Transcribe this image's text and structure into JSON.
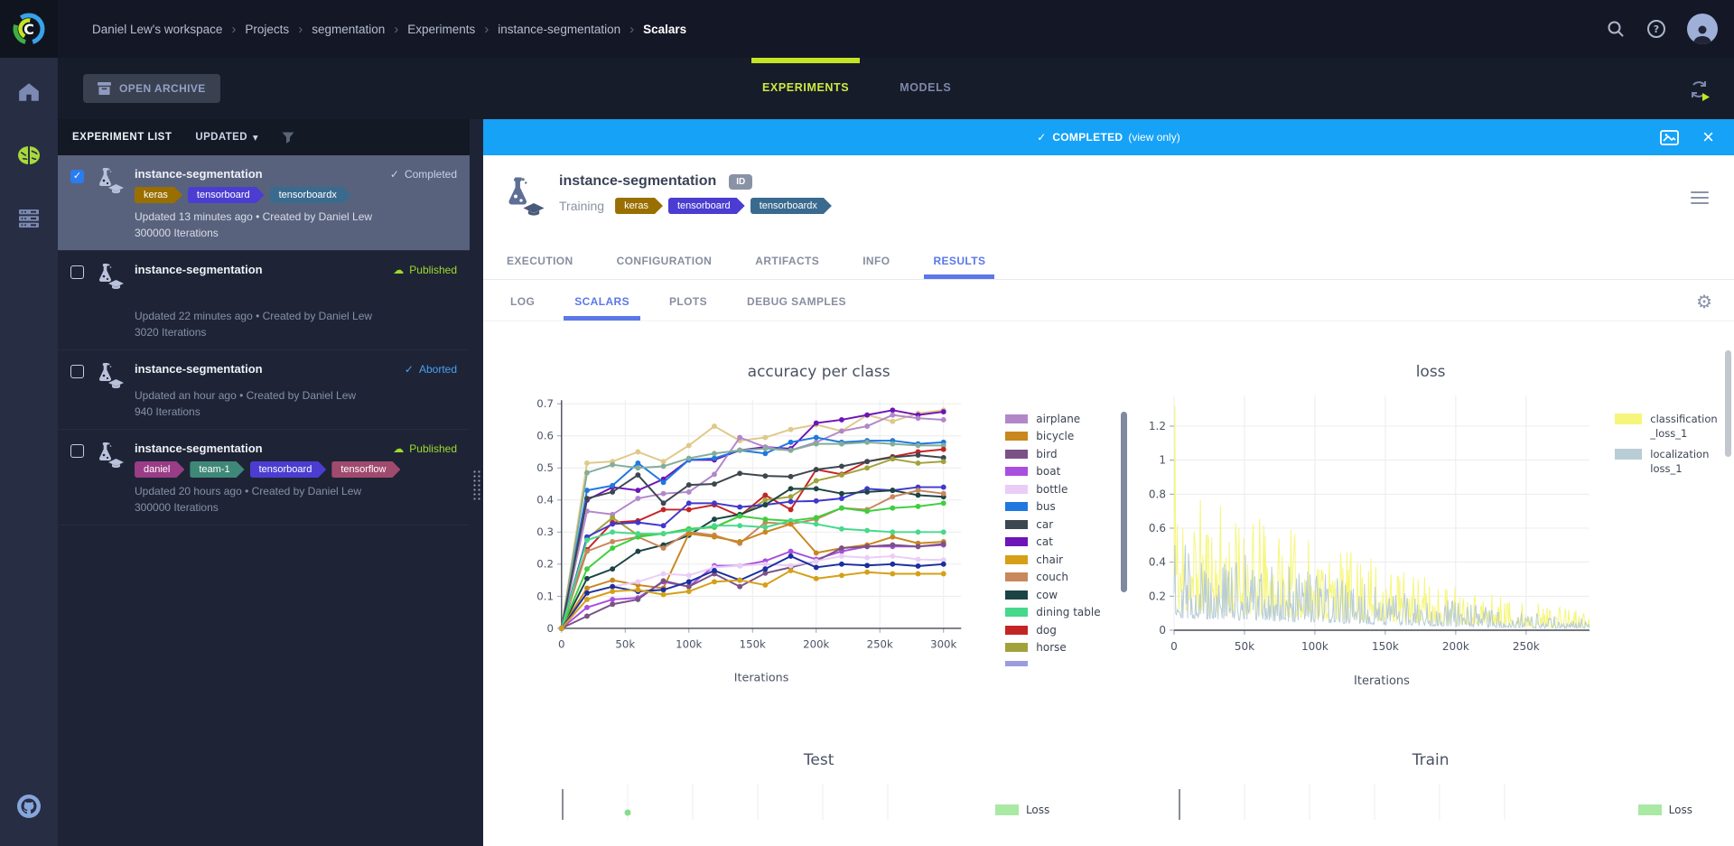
{
  "topbar": {
    "breadcrumbs": [
      {
        "label": "Daniel Lew's workspace",
        "sep": ""
      },
      {
        "label": "Projects",
        "sep": "›"
      },
      {
        "label": "segmentation",
        "sep": "›"
      },
      {
        "label": "Experiments",
        "sep": "›"
      },
      {
        "label": "instance-segmentation",
        "sep": "›"
      },
      {
        "label": "Scalars",
        "sep": "›",
        "current": true
      }
    ]
  },
  "header": {
    "open_archive": "OPEN ARCHIVE",
    "tabs": [
      {
        "label": "EXPERIMENTS",
        "active": true
      },
      {
        "label": "MODELS"
      }
    ]
  },
  "experiment_list": {
    "title": "EXPERIMENT LIST",
    "sort_label": "UPDATED",
    "sort_caret": "▾",
    "items": [
      {
        "name": "instance-segmentation",
        "status": "Completed",
        "status_glyph": "✓",
        "status_color": "#c8d0e8",
        "checked": true,
        "selected": true,
        "tags": [
          {
            "label": "keras",
            "color": "#996f00"
          },
          {
            "label": "tensorboard",
            "color": "#4b3dd1"
          },
          {
            "label": "tensorboardx",
            "color": "#3a6b8f"
          }
        ],
        "updated": "Updated 13 minutes ago • Created by Daniel Lew",
        "iterations": "300000 Iterations"
      },
      {
        "name": "instance-segmentation",
        "status": "Published",
        "status_glyph": "☁",
        "status_color": "#9edb2c",
        "gap": true,
        "tags": [],
        "updated": "Updated 22 minutes ago • Created by Daniel Lew",
        "iterations": "3020 Iterations"
      },
      {
        "name": "instance-segmentation",
        "status": "Aborted",
        "status_glyph": "✓",
        "status_color": "#4e9ff0",
        "tags": [],
        "updated": "Updated an hour ago • Created by Daniel Lew",
        "iterations": "940 Iterations"
      },
      {
        "name": "instance-segmentation",
        "status": "Published",
        "status_glyph": "☁",
        "status_color": "#9edb2c",
        "tags": [
          {
            "label": "daniel",
            "color": "#9a3c86"
          },
          {
            "label": "team-1",
            "color": "#3f8878"
          },
          {
            "label": "tensorboard",
            "color": "#4b3dd1"
          },
          {
            "label": "tensorflow",
            "color": "#a04a6e"
          }
        ],
        "updated": "Updated 20 hours ago • Created by Daniel Lew",
        "iterations": "300000 Iterations"
      }
    ]
  },
  "detail": {
    "banner": {
      "glyph": "✓",
      "status": "COMPLETED",
      "suffix": "(view only)"
    },
    "title": "instance-segmentation",
    "id_badge": "ID",
    "state": "Training",
    "tags": [
      {
        "label": "keras",
        "color": "#996f00"
      },
      {
        "label": "tensorboard",
        "color": "#4b3dd1"
      },
      {
        "label": "tensorboardx",
        "color": "#3a6b8f"
      }
    ],
    "tabs": [
      {
        "label": "EXECUTION"
      },
      {
        "label": "CONFIGURATION"
      },
      {
        "label": "ARTIFACTS"
      },
      {
        "label": "INFO"
      },
      {
        "label": "RESULTS",
        "active": true
      }
    ],
    "subtabs": [
      {
        "label": "LOG"
      },
      {
        "label": "SCALARS",
        "active": true
      },
      {
        "label": "PLOTS"
      },
      {
        "label": "DEBUG SAMPLES"
      }
    ],
    "gear_glyph": "⚙"
  },
  "chart_data": [
    {
      "type": "line",
      "title": "accuracy per class",
      "xlabel": "Iterations",
      "xlim": [
        0,
        300000
      ],
      "ylim": [
        0,
        0.7
      ],
      "grid": true,
      "legend_position": "right",
      "x": [
        0,
        20000,
        40000,
        60000,
        80000,
        100000,
        120000,
        140000,
        160000,
        180000,
        200000,
        220000,
        240000,
        260000,
        280000,
        300000
      ],
      "x_tick_values": [
        0,
        50000,
        100000,
        150000,
        200000,
        250000,
        300000
      ],
      "x_tick_labels": [
        "0",
        "50k",
        "100k",
        "150k",
        "200k",
        "250k",
        "300k"
      ],
      "y_tick_values": [
        0,
        0.1,
        0.2,
        0.3,
        0.4,
        0.5,
        0.6,
        0.7
      ],
      "y_tick_labels": [
        "0",
        "0.1",
        "0.2",
        "0.3",
        "0.4",
        "0.5",
        "0.6",
        "0.7"
      ],
      "legend": [
        {
          "label": "airplane",
          "color": "#b287c9"
        },
        {
          "label": "bicycle",
          "color": "#c8871f"
        },
        {
          "label": "bird",
          "color": "#7a5286"
        },
        {
          "label": "boat",
          "color": "#a94fe0"
        },
        {
          "label": "bottle",
          "color": "#eacdf6"
        },
        {
          "label": "bus",
          "color": "#1f78e0"
        },
        {
          "label": "car",
          "color": "#3c4750"
        },
        {
          "label": "cat",
          "color": "#6e14b8"
        },
        {
          "label": "chair",
          "color": "#d5a017"
        },
        {
          "label": "couch",
          "color": "#c8875d"
        },
        {
          "label": "cow",
          "color": "#1c4444"
        },
        {
          "label": "dining table",
          "color": "#46d98c"
        },
        {
          "label": "dog",
          "color": "#c32525"
        },
        {
          "label": "horse",
          "color": "#a2a23c"
        },
        {
          "label": "",
          "color": "#9b9ce0"
        }
      ],
      "series": [
        {
          "name": "",
          "color": "#dfc98a",
          "values": [
            0,
            0.515,
            0.52,
            0.55,
            0.52,
            0.57,
            0.63,
            0.585,
            0.595,
            0.62,
            0.635,
            0.615,
            0.665,
            0.645,
            0.67,
            0.68
          ]
        },
        {
          "name": "cat",
          "color": "#6e14b8",
          "values": [
            0,
            0.4,
            0.44,
            0.43,
            0.465,
            0.525,
            0.525,
            0.555,
            0.565,
            0.56,
            0.64,
            0.65,
            0.665,
            0.68,
            0.665,
            0.675
          ]
        },
        {
          "name": "airplane",
          "color": "#b287c9",
          "values": [
            0,
            0.365,
            0.355,
            0.405,
            0.42,
            0.425,
            0.48,
            0.595,
            0.565,
            0.555,
            0.58,
            0.615,
            0.63,
            0.665,
            0.655,
            0.65
          ]
        },
        {
          "name": "bus",
          "color": "#1f78e0",
          "values": [
            0,
            0.43,
            0.445,
            0.515,
            0.455,
            0.525,
            0.53,
            0.555,
            0.545,
            0.58,
            0.595,
            0.58,
            0.585,
            0.585,
            0.575,
            0.58
          ]
        },
        {
          "name": "",
          "color": "#84ad99",
          "values": [
            0,
            0.485,
            0.51,
            0.5,
            0.505,
            0.53,
            0.545,
            0.555,
            0.56,
            0.555,
            0.575,
            0.575,
            0.58,
            0.575,
            0.57,
            0.57
          ]
        },
        {
          "name": "dog",
          "color": "#c32525",
          "values": [
            0,
            0.245,
            0.33,
            0.335,
            0.37,
            0.37,
            0.385,
            0.35,
            0.415,
            0.37,
            0.495,
            0.48,
            0.52,
            0.535,
            0.55,
            0.558
          ]
        },
        {
          "name": "car",
          "color": "#3c4750",
          "values": [
            0,
            0.405,
            0.425,
            0.478,
            0.39,
            0.447,
            0.45,
            0.483,
            0.475,
            0.473,
            0.495,
            0.505,
            0.52,
            0.533,
            0.54,
            0.532
          ]
        },
        {
          "name": "horse",
          "color": "#a2a23c",
          "values": [
            0,
            0.28,
            0.345,
            0.29,
            0.295,
            0.31,
            0.315,
            0.35,
            0.4,
            0.41,
            0.46,
            0.478,
            0.5,
            0.528,
            0.515,
            0.52
          ]
        },
        {
          "name": "",
          "color": "#4038cc",
          "values": [
            0,
            0.285,
            0.325,
            0.33,
            0.32,
            0.39,
            0.39,
            0.378,
            0.385,
            0.395,
            0.397,
            0.405,
            0.435,
            0.43,
            0.44,
            0.44
          ]
        },
        {
          "name": "cow",
          "color": "#1c4444",
          "values": [
            0,
            0.155,
            0.185,
            0.24,
            0.26,
            0.29,
            0.34,
            0.355,
            0.385,
            0.435,
            0.435,
            0.42,
            0.425,
            0.43,
            0.415,
            0.41
          ]
        },
        {
          "name": "couch",
          "color": "#c8875d",
          "values": [
            0,
            0.24,
            0.27,
            0.285,
            0.25,
            0.3,
            0.29,
            0.265,
            0.33,
            0.325,
            0.34,
            0.375,
            0.37,
            0.41,
            0.43,
            0.42
          ]
        },
        {
          "name": "",
          "color": "#3ecf3e",
          "values": [
            0,
            0.185,
            0.25,
            0.285,
            0.295,
            0.31,
            0.315,
            0.35,
            0.34,
            0.335,
            0.345,
            0.375,
            0.365,
            0.375,
            0.38,
            0.39
          ]
        },
        {
          "name": "dining table",
          "color": "#46d98c",
          "values": [
            0,
            0.275,
            0.3,
            0.295,
            0.295,
            0.305,
            0.32,
            0.32,
            0.315,
            0.335,
            0.325,
            0.31,
            0.305,
            0.3,
            0.3,
            0.3
          ]
        },
        {
          "name": "bicycle",
          "color": "#c8871f",
          "values": [
            0,
            0.125,
            0.15,
            0.135,
            0.125,
            0.295,
            0.285,
            0.27,
            0.3,
            0.325,
            0.235,
            0.25,
            0.26,
            0.285,
            0.265,
            0.27
          ]
        },
        {
          "name": "boat",
          "color": "#a94fe0",
          "values": [
            0,
            0.065,
            0.09,
            0.095,
            0.145,
            0.13,
            0.195,
            0.195,
            0.21,
            0.24,
            0.215,
            0.24,
            0.255,
            0.255,
            0.255,
            0.26
          ]
        },
        {
          "name": "bird",
          "color": "#7a5286",
          "values": [
            0,
            0.038,
            0.075,
            0.09,
            0.148,
            0.13,
            0.17,
            0.13,
            0.172,
            0.19,
            0.21,
            0.25,
            0.255,
            0.26,
            0.255,
            0.263
          ]
        },
        {
          "name": "bottle",
          "color": "#eacdf6",
          "values": [
            0,
            0.11,
            0.13,
            0.145,
            0.17,
            0.165,
            0.19,
            0.195,
            0.2,
            0.195,
            0.21,
            0.225,
            0.22,
            0.225,
            0.215,
            0.213
          ]
        },
        {
          "name": "",
          "color": "#1b2f9e",
          "values": [
            0,
            0.11,
            0.13,
            0.115,
            0.12,
            0.145,
            0.18,
            0.15,
            0.185,
            0.225,
            0.19,
            0.2,
            0.196,
            0.2,
            0.194,
            0.2
          ]
        },
        {
          "name": "chair",
          "color": "#d5a017",
          "values": [
            0,
            0.09,
            0.115,
            0.12,
            0.105,
            0.115,
            0.145,
            0.15,
            0.135,
            0.18,
            0.155,
            0.165,
            0.175,
            0.17,
            0.17,
            0.17
          ]
        }
      ]
    },
    {
      "type": "line-noisy",
      "title": "loss",
      "xlabel": "Iterations",
      "xlim": [
        0,
        295000
      ],
      "ylim": [
        0,
        1.35
      ],
      "grid": true,
      "legend_position": "right",
      "x_tick_values": [
        0,
        50000,
        100000,
        150000,
        200000,
        250000
      ],
      "x_tick_labels": [
        "0",
        "50k",
        "100k",
        "150k",
        "200k",
        "250k"
      ],
      "y_tick_values": [
        0,
        0.2,
        0.4,
        0.6,
        0.8,
        1,
        1.2
      ],
      "y_tick_labels": [
        "0",
        "0.2",
        "0.4",
        "0.6",
        "0.8",
        "1",
        "1.2"
      ],
      "series": [
        {
          "name": "classification_loss_1",
          "legend_lines": {
            "0": "classification",
            "1": "_loss_1"
          },
          "color": "#f6f67c",
          "noise": {
            "seed": 11,
            "points": 520,
            "envelope_start": 0.52,
            "envelope_end": 0.075,
            "decay_pow": 1.4,
            "spike_gain": 1.45,
            "floor": 0.22,
            "initial_spike": 1.32
          }
        },
        {
          "name": "localization loss_1",
          "legend_lines": {
            "0": "localization",
            "1": "loss_1"
          },
          "color": "#b9cdd5",
          "noise": {
            "seed": 29,
            "points": 520,
            "envelope_start": 0.36,
            "envelope_end": 0.045,
            "decay_pow": 1.4,
            "spike_gain": 1.35,
            "floor": 0.2,
            "initial_spike": 0.5
          }
        }
      ]
    },
    {
      "type": "line",
      "title": "Test",
      "partial": true,
      "legend": [
        {
          "label": "Loss",
          "color": "#a9e9a4"
        }
      ],
      "marker_color": "#86dd8a"
    },
    {
      "type": "line",
      "title": "Train",
      "partial": true,
      "legend": [
        {
          "label": "Loss",
          "color": "#a9e9a4"
        }
      ]
    }
  ]
}
